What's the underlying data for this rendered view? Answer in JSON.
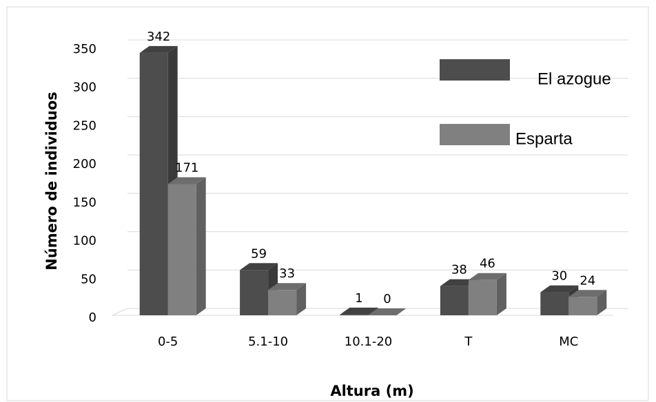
{
  "chart_data": {
    "type": "bar3d",
    "xlabel": "Altura (m)",
    "ylabel": "Número de individuos",
    "categories": [
      "0-5",
      "5.1-10",
      "10.1-20",
      "T",
      "MC"
    ],
    "series": [
      {
        "name": "El azogue",
        "color": "#4d4d4d",
        "values": [
          342,
          59,
          1,
          38,
          30
        ]
      },
      {
        "name": "Esparta",
        "color": "#808080",
        "values": [
          171,
          33,
          0,
          46,
          24
        ]
      }
    ],
    "ylim": [
      0,
      350
    ],
    "yticks": [
      0,
      50,
      100,
      150,
      200,
      250,
      300,
      350
    ],
    "grid": true,
    "legend": "upper right",
    "value_labels_shown": true
  }
}
